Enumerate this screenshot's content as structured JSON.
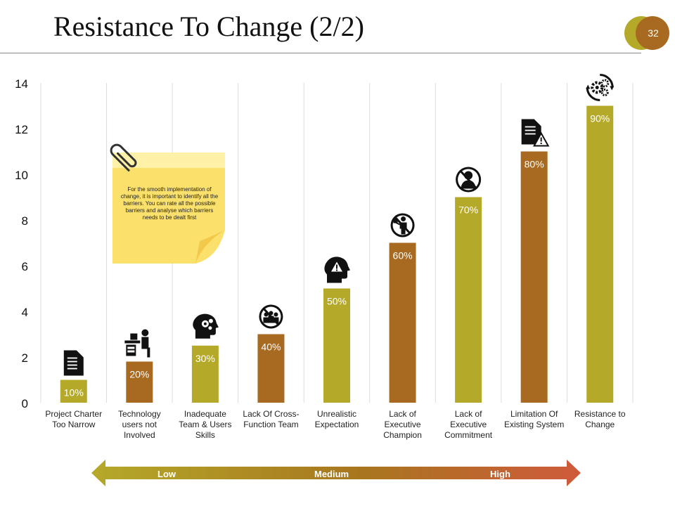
{
  "slide": {
    "title": "Resistance To Change (2/2)",
    "page_number": "32"
  },
  "chart_data": {
    "type": "bar",
    "title": "",
    "xlabel": "",
    "ylabel": "",
    "ylim": [
      0,
      14
    ],
    "yticks": [
      0,
      2,
      4,
      6,
      8,
      10,
      12,
      14
    ],
    "grid": "vertical separators between categories",
    "categories": [
      "Project Charter Too Narrow",
      "Technology users not Involved",
      "Inadequate Team & Users Skills",
      "Lack Of Cross-Function Team",
      "Unrealistic Expectation",
      "Lack of Executive Champion",
      "Lack of Executive Commitment",
      "Limitation Of Existing System",
      "Resistance to Change"
    ],
    "values": [
      1,
      1.8,
      2.5,
      3,
      5,
      7,
      9,
      11,
      13
    ],
    "data_labels": [
      "10%",
      "20%",
      "30%",
      "40%",
      "50%",
      "60%",
      "70%",
      "80%",
      "90%"
    ],
    "bar_colors": [
      "#b5a92a",
      "#a86a20",
      "#b5a92a",
      "#a86a20",
      "#b5a92a",
      "#a86a20",
      "#b5a92a",
      "#a86a20",
      "#b5a92a"
    ],
    "icons": [
      "document-icon",
      "desk-worker-icon",
      "head-gears-icon",
      "no-team-icon",
      "head-warning-icon",
      "no-presenter-icon",
      "no-person-icon",
      "document-warning-icon",
      "gears-cycle-icon"
    ]
  },
  "note": {
    "text": "For the smooth implementation of change, it is important to identify all the barriers. You can rate all the possible barriers and analyse which barriers needs to be dealt first"
  },
  "scale": {
    "low": "Low",
    "medium": "Medium",
    "high": "High"
  },
  "colors": {
    "olive": "#b5a92a",
    "brown": "#a86a20",
    "note_yellow": "#fbe06b",
    "arrow_start": "#b5a92a",
    "arrow_end": "#cf5a3c"
  }
}
